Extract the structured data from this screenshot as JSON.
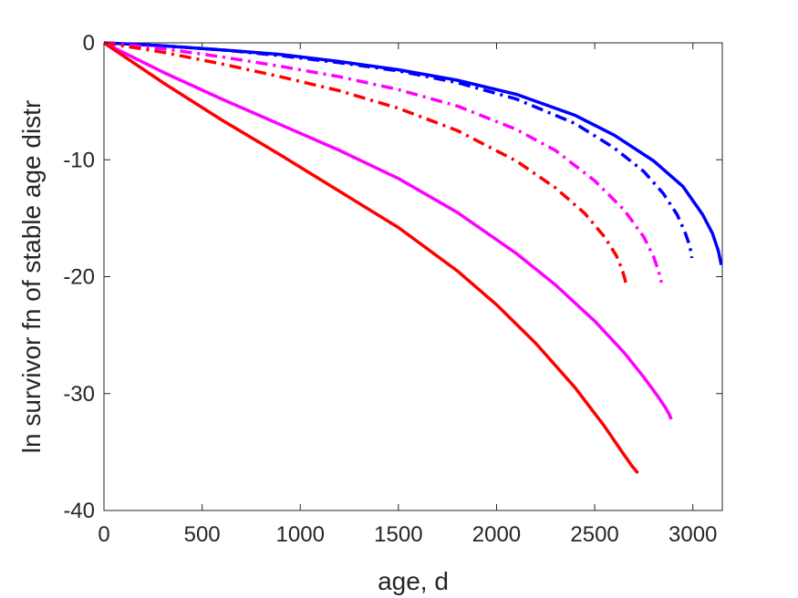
{
  "chart_data": {
    "type": "line",
    "xlabel": "age, d",
    "ylabel": "ln survivor fn of stable age distr",
    "xlim": [
      0,
      3150
    ],
    "ylim": [
      -40,
      0
    ],
    "xticks": [
      0,
      500,
      1000,
      1500,
      2000,
      2500,
      3000
    ],
    "yticks": [
      0,
      -10,
      -20,
      -30,
      -40
    ],
    "grid": false,
    "legend": "none",
    "series": [
      {
        "color": "#0000ff",
        "style": "solid",
        "x": [
          0,
          300,
          600,
          900,
          1200,
          1500,
          1800,
          2100,
          2400,
          2600,
          2800,
          2950,
          3050,
          3100,
          3130,
          3145
        ],
        "y": [
          0,
          -0.25,
          -0.6,
          -1.0,
          -1.6,
          -2.3,
          -3.2,
          -4.4,
          -6.2,
          -7.9,
          -10.1,
          -12.3,
          -14.7,
          -16.3,
          -17.8,
          -19.0
        ]
      },
      {
        "color": "#0000ff",
        "style": "dashdot",
        "x": [
          0,
          300,
          600,
          900,
          1200,
          1500,
          1800,
          2100,
          2400,
          2600,
          2750,
          2850,
          2920,
          2960,
          2985,
          2995
        ],
        "y": [
          0,
          -0.25,
          -0.6,
          -1.1,
          -1.7,
          -2.4,
          -3.4,
          -4.8,
          -6.9,
          -9.0,
          -11.0,
          -12.9,
          -14.7,
          -16.2,
          -17.4,
          -18.4
        ]
      },
      {
        "color": "#ff00ff",
        "style": "dashdot",
        "x": [
          0,
          300,
          600,
          900,
          1200,
          1500,
          1800,
          2100,
          2300,
          2500,
          2650,
          2750,
          2800,
          2825,
          2840
        ],
        "y": [
          0,
          -0.5,
          -1.2,
          -2.0,
          -2.9,
          -4.0,
          -5.4,
          -7.4,
          -9.2,
          -11.8,
          -14.3,
          -16.6,
          -18.3,
          -19.5,
          -20.5
        ]
      },
      {
        "color": "#ff0000",
        "style": "dashdot",
        "x": [
          0,
          300,
          600,
          900,
          1200,
          1500,
          1800,
          2100,
          2300,
          2450,
          2550,
          2610,
          2640,
          2655,
          2660
        ],
        "y": [
          0,
          -0.8,
          -1.8,
          -2.9,
          -4.1,
          -5.6,
          -7.5,
          -10.1,
          -12.4,
          -14.6,
          -16.6,
          -18.2,
          -19.4,
          -20.3,
          -20.8
        ]
      },
      {
        "color": "#ff00ff",
        "style": "solid",
        "x": [
          0,
          300,
          600,
          900,
          1200,
          1500,
          1800,
          2100,
          2300,
          2500,
          2650,
          2750,
          2820,
          2860,
          2880,
          2890
        ],
        "y": [
          0,
          -2.5,
          -4.8,
          -7.0,
          -9.2,
          -11.6,
          -14.5,
          -18.0,
          -20.7,
          -23.8,
          -26.5,
          -28.6,
          -30.2,
          -31.2,
          -31.8,
          -32.2
        ]
      },
      {
        "color": "#ff0000",
        "style": "solid",
        "x": [
          0,
          300,
          600,
          900,
          1200,
          1500,
          1800,
          2000,
          2200,
          2400,
          2550,
          2640,
          2690,
          2710,
          2720
        ],
        "y": [
          0,
          -3.4,
          -6.6,
          -9.6,
          -12.7,
          -15.8,
          -19.5,
          -22.4,
          -25.7,
          -29.5,
          -32.8,
          -35.0,
          -36.2,
          -36.6,
          -36.8
        ]
      }
    ]
  }
}
